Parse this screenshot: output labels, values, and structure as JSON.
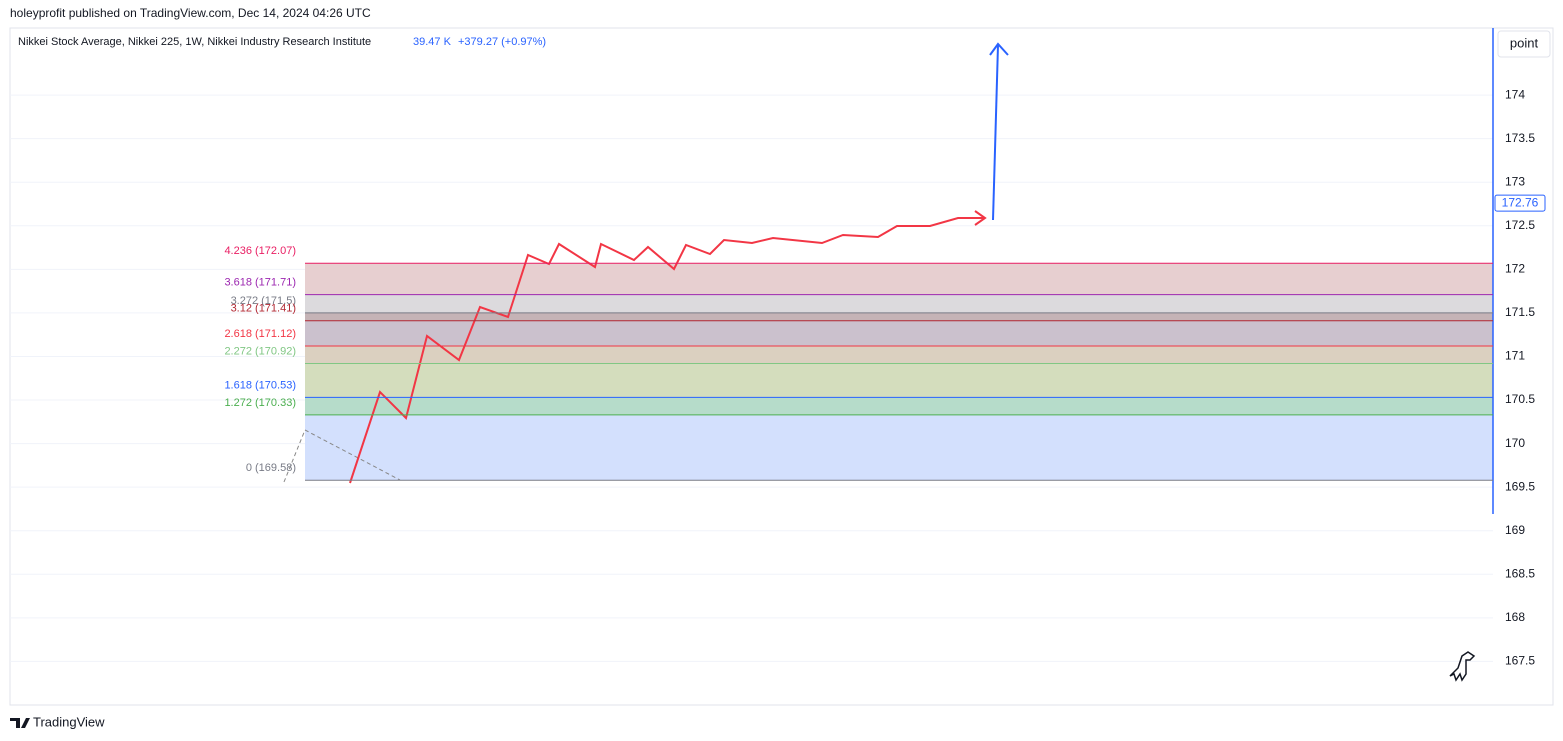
{
  "header": {
    "published": "holeyprofit published on TradingView.com, Dec 14, 2024 04:26 UTC"
  },
  "legend": {
    "symbol": "Nikkei Stock Average, Nikkei 225, 1W, Nikkei Industry Research Institute",
    "volume": "39.47 K",
    "change": "+379.27 (+0.97%)"
  },
  "scale_button": "point",
  "footer": "TradingView",
  "chart_data": {
    "type": "fib-levels",
    "ylim": [
      167.0,
      174.77
    ],
    "yticks": [
      167.5,
      168,
      168.5,
      169,
      169.5,
      170,
      170.5,
      171,
      171.5,
      172,
      172.5,
      173,
      173.5,
      174
    ],
    "grid": true,
    "price_label": 172.76,
    "price_color": "#2962ff",
    "levels": [
      {
        "value": 172.07,
        "label": "4.236 (172.07)",
        "color": "#e91e63",
        "fill": "#e7cfd0"
      },
      {
        "value": 171.71,
        "label": "3.618 (171.71)",
        "color": "#9c27b0",
        "fill": "#dcdadd"
      },
      {
        "value": 171.5,
        "label": "3.272 (171.5)",
        "color": "#787b86",
        "fill": "#c5b3b6"
      },
      {
        "value": 171.41,
        "label": "3.12 (171.41)",
        "color": "#b22833",
        "fill": "#cbc1cd"
      },
      {
        "value": 171.12,
        "label": "2.618 (171.12)",
        "color": "#f23645",
        "fill": "#dbd0c0"
      },
      {
        "value": 170.92,
        "label": "2.272 (170.92)",
        "color": "#81c784",
        "fill": "#d4ddbd"
      },
      {
        "value": 170.53,
        "label": "1.618 (170.53)",
        "color": "#2962ff",
        "fill": "#b6dcca"
      },
      {
        "value": 170.33,
        "label": "1.272 (170.33)",
        "color": "#4caf50",
        "fill": "#d3e0fd"
      },
      {
        "value": 169.58,
        "label": "0 (169.58)",
        "color": "#787b86"
      }
    ]
  }
}
